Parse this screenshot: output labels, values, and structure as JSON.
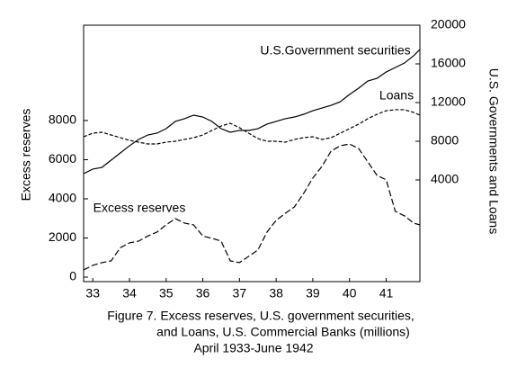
{
  "chart_data": {
    "type": "line",
    "y_label": "Excess reserves",
    "y2_label": "U.S. Governments and Loans",
    "caption": [
      "Figure 7.  Excess reserves, U.S. government securities,",
      "and Loans, U.S. Commercial Banks (millions)",
      "April 1933-June 1942"
    ],
    "x": [
      33.25,
      33.5,
      33.75,
      34,
      34.25,
      34.5,
      34.75,
      35,
      35.25,
      35.5,
      35.75,
      36,
      36.25,
      36.5,
      36.75,
      37,
      37.25,
      37.5,
      37.75,
      38,
      38.25,
      38.5,
      38.75,
      39,
      39.25,
      39.5,
      39.75,
      40,
      40.25,
      40.5,
      40.75,
      41,
      41.25,
      41.5,
      41.75,
      42,
      42.25,
      42.42
    ],
    "xlim": [
      33.25,
      42.42
    ],
    "xticks": [
      {
        "value": 33.5,
        "label": "33"
      },
      {
        "value": 34.5,
        "label": "34"
      },
      {
        "value": 35.5,
        "label": "35"
      },
      {
        "value": 36.5,
        "label": "36"
      },
      {
        "value": 37.5,
        "label": "37"
      },
      {
        "value": 38.5,
        "label": "38"
      },
      {
        "value": 39.5,
        "label": "39"
      },
      {
        "value": 40.5,
        "label": "40"
      },
      {
        "value": 41.5,
        "label": "41"
      }
    ],
    "ylim": [
      -230,
      12870
    ],
    "yticks": [
      0,
      2000,
      4000,
      6000,
      8000
    ],
    "y2lim": [
      -6510,
      20000
    ],
    "y2ticks": [
      4000,
      8000,
      12000,
      16000,
      20000
    ],
    "series": [
      {
        "name": "Excess reserves",
        "color": "#000000",
        "line_style": "dashed",
        "axis": "y",
        "values": [
          370,
          600,
          740,
          830,
          1500,
          1750,
          1840,
          2100,
          2300,
          2670,
          2990,
          2760,
          2670,
          2100,
          1980,
          1840,
          830,
          740,
          1060,
          1380,
          2300,
          2900,
          3260,
          3590,
          4280,
          5060,
          5660,
          6440,
          6710,
          6800,
          6570,
          5890,
          5200,
          4970,
          3360,
          3130,
          2760,
          2670
        ]
      },
      {
        "name": "U.S.Government securities",
        "color": "#000000",
        "line_style": "solid",
        "axis": "y2",
        "values": [
          4650,
          5120,
          5300,
          6050,
          6790,
          7530,
          8190,
          8650,
          8840,
          9300,
          10050,
          10330,
          10700,
          10510,
          10050,
          9300,
          8930,
          9120,
          9120,
          9300,
          9770,
          10050,
          10330,
          10510,
          10790,
          11160,
          11440,
          11720,
          12090,
          12840,
          13490,
          14230,
          14510,
          15160,
          15630,
          16090,
          16840,
          17490
        ]
      },
      {
        "name": "Loans",
        "color": "#000000",
        "line_style": "dotted",
        "axis": "y2",
        "values": [
          8470,
          8840,
          8930,
          8650,
          8370,
          8090,
          7910,
          7720,
          7720,
          7910,
          8000,
          8190,
          8370,
          8650,
          9120,
          9580,
          9860,
          9400,
          8840,
          8280,
          8000,
          8000,
          7910,
          8190,
          8370,
          8470,
          8190,
          8370,
          8840,
          9300,
          9770,
          10330,
          10790,
          11160,
          11260,
          11260,
          10980,
          10700
        ]
      }
    ]
  }
}
